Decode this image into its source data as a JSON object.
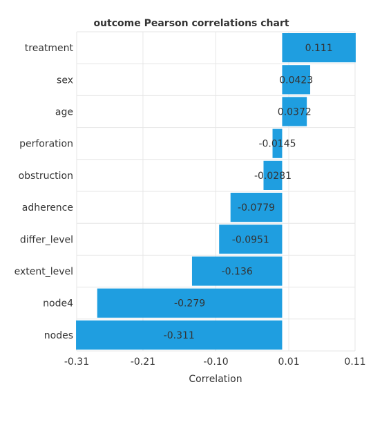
{
  "chart_data": {
    "type": "bar",
    "orientation": "horizontal",
    "title": "outcome Pearson correlations chart",
    "xlabel": "Correlation",
    "ylabel": "",
    "xlim": [
      -0.31,
      0.11
    ],
    "x_ticks": [
      "-0.31",
      "-0.21",
      "-0.10",
      "0.01",
      "0.11"
    ],
    "x_tick_values": [
      -0.31,
      -0.21,
      -0.1,
      0.01,
      0.11
    ],
    "categories": [
      "treatment",
      "sex",
      "age",
      "perforation",
      "obstruction",
      "adherence",
      "differ_level",
      "extent_level",
      "node4",
      "nodes"
    ],
    "values": [
      0.111,
      0.0423,
      0.0372,
      -0.0145,
      -0.0281,
      -0.0779,
      -0.0951,
      -0.136,
      -0.279,
      -0.311
    ],
    "labels": [
      "0.111",
      "0.0423",
      "0.0372",
      "-0.0145",
      "-0.0281",
      "-0.0779",
      "-0.0951",
      "-0.136",
      "-0.279",
      "-0.311"
    ],
    "bar_color": "#1f9ee0",
    "grid": true,
    "legend": "none"
  }
}
